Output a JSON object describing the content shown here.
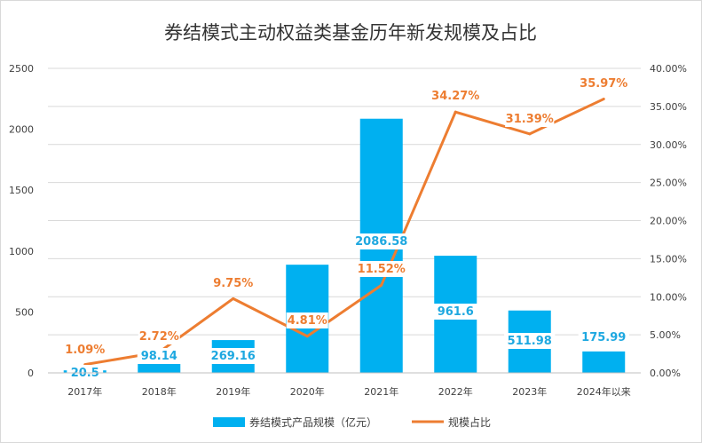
{
  "chart_data": {
    "type": "bar",
    "title": "券结模式主动权益类基金历年新发规模及占比",
    "categories": [
      "2017年",
      "2018年",
      "2019年",
      "2020年",
      "2021年",
      "2022年",
      "2023年",
      "2024年以来"
    ],
    "series": [
      {
        "name": "券结模式产品规模（亿元）",
        "type": "bar",
        "axis": "left",
        "color": "#00b0f0",
        "values": [
          20.5,
          98.14,
          269.16,
          888.0,
          2086.58,
          961.6,
          511.98,
          175.99
        ],
        "labels": [
          "20.5",
          "98.14",
          "269.16",
          "",
          "2086.58",
          "961.6",
          "511.98",
          "175.99"
        ]
      },
      {
        "name": "规模占比",
        "type": "line",
        "axis": "right",
        "color": "#ed7d31",
        "values": [
          1.09,
          2.72,
          9.75,
          4.81,
          11.52,
          34.27,
          31.39,
          35.97
        ],
        "labels": [
          "1.09%",
          "2.72%",
          "9.75%",
          "4.81%",
          "11.52%",
          "34.27%",
          "31.39%",
          "35.97%"
        ]
      }
    ],
    "y_left": {
      "min": 0,
      "max": 2500,
      "ticks": [
        "0",
        "500",
        "1000",
        "1500",
        "2000",
        "2500"
      ]
    },
    "y_right": {
      "min": 0,
      "max": 40,
      "ticks": [
        "0.00%",
        "5.00%",
        "10.00%",
        "15.00%",
        "20.00%",
        "25.00%",
        "30.00%",
        "35.00%",
        "40.00%"
      ]
    },
    "grid": true,
    "legend_position": "bottom",
    "legend": [
      "券结模式产品规模（亿元）",
      "规模占比"
    ]
  }
}
